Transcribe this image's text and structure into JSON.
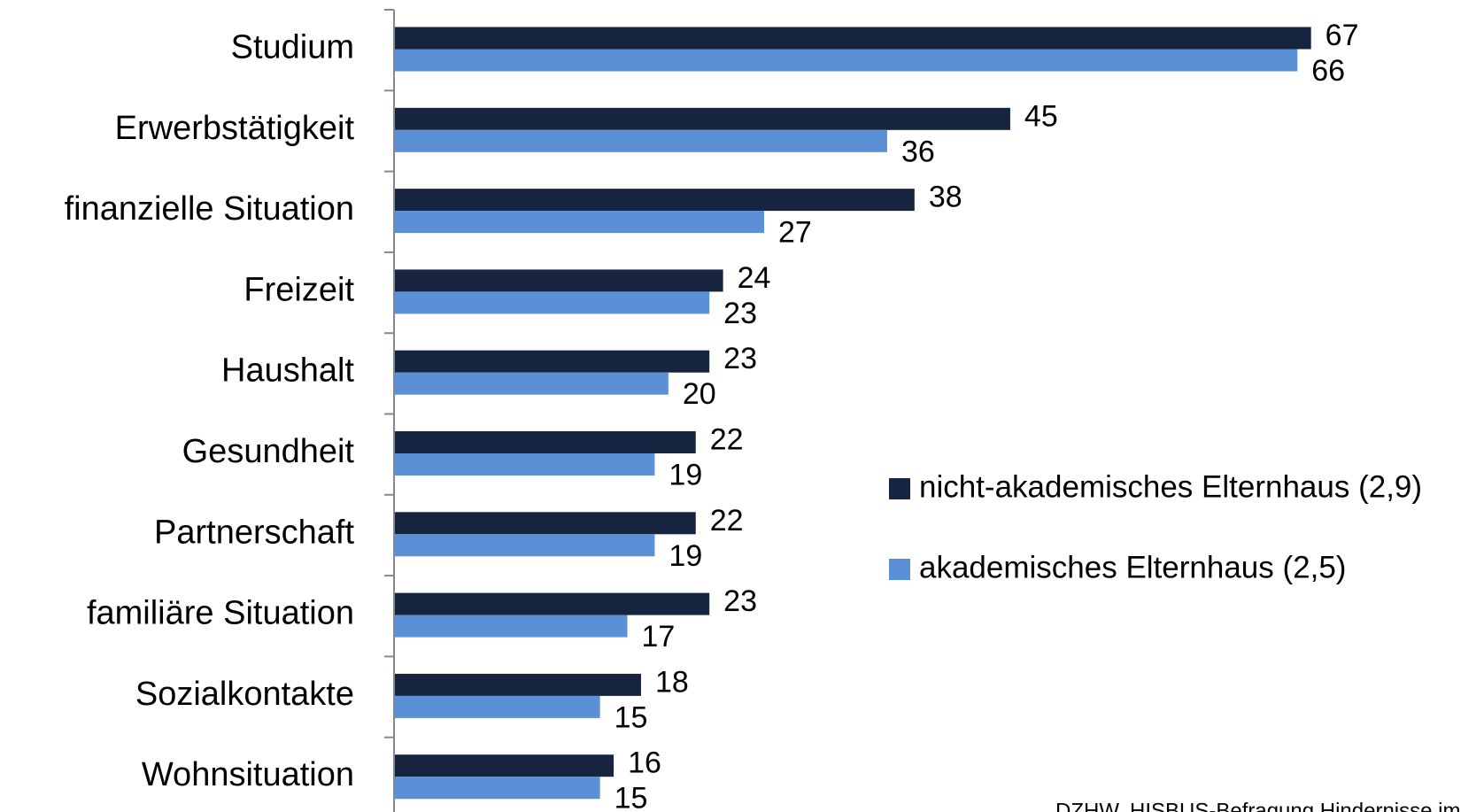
{
  "chart_data": {
    "type": "barh",
    "categories": [
      "Studium",
      "Erwerbstätigkeit",
      "finanzielle Situation",
      "Freizeit",
      "Haushalt",
      "Gesundheit",
      "Partnerschaft",
      "familiäre Situation",
      "Sozialkontakte",
      "Wohnsituation"
    ],
    "series": [
      {
        "name": "nicht-akademisches Elternhaus (2,9)",
        "color": "#16243f",
        "values": [
          67,
          45,
          38,
          24,
          23,
          22,
          22,
          23,
          18,
          16
        ]
      },
      {
        "name": "akademisches Elternhaus (2,5)",
        "color": "#5b8fd6",
        "values": [
          66,
          36,
          27,
          23,
          20,
          19,
          19,
          17,
          15,
          15
        ]
      }
    ],
    "xlim": [
      0,
      70
    ],
    "source": "DZHW, HISBUS-Befragung Hindernisse im"
  }
}
